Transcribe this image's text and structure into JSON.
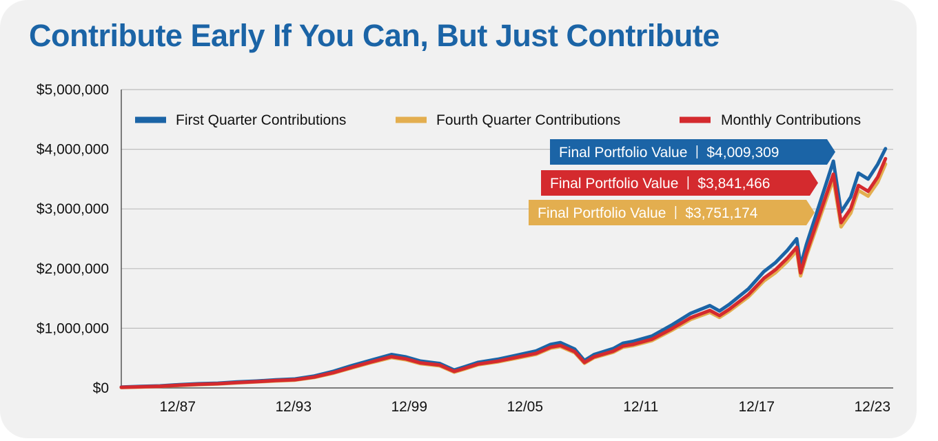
{
  "colors": {
    "first_quarter": "#1b64a6",
    "fourth_quarter": "#e3ae4f",
    "monthly": "#d42a2e",
    "title": "#1b64a6",
    "gridline": "#bdbdbd",
    "background": "#f1f1f1"
  },
  "chart_data": {
    "type": "line",
    "title": "Contribute Early If You Can, But Just Contribute",
    "xlabel": "",
    "ylabel": "",
    "x_range": [
      1985.0,
      2025.0
    ],
    "ylim": [
      0,
      5000000
    ],
    "y_ticks": [
      0,
      1000000,
      2000000,
      3000000,
      4000000,
      5000000
    ],
    "y_tick_labels": [
      "$0",
      "$1,000,000",
      "$2,000,000",
      "$3,000,000",
      "$4,000,000",
      "$5,000,000"
    ],
    "x_ticks": [
      1987.92,
      1993.92,
      1999.92,
      2005.92,
      2011.92,
      2017.92,
      2023.92
    ],
    "x_tick_labels": [
      "12/87",
      "12/93",
      "12/99",
      "12/05",
      "12/11",
      "12/17",
      "12/23"
    ],
    "grid": true,
    "legend_position": "top",
    "x": [
      1985.0,
      1986.0,
      1987.0,
      1988.0,
      1989.0,
      1990.0,
      1991.0,
      1992.0,
      1993.0,
      1994.0,
      1995.0,
      1996.0,
      1997.0,
      1998.0,
      1999.0,
      1999.75,
      2000.5,
      2001.5,
      2002.25,
      2002.75,
      2003.5,
      2004.5,
      2005.5,
      2006.5,
      2007.25,
      2007.75,
      2008.5,
      2009.0,
      2009.5,
      2010.5,
      2011.0,
      2011.5,
      2012.5,
      2013.5,
      2014.5,
      2015.5,
      2016.0,
      2016.5,
      2017.5,
      2018.3,
      2018.9,
      2019.5,
      2020.0,
      2020.2,
      2020.5,
      2021.0,
      2021.5,
      2021.9,
      2022.3,
      2022.8,
      2023.2,
      2023.7,
      2024.2,
      2024.6
    ],
    "series": [
      {
        "name": "First Quarter Contributions",
        "values": [
          15000,
          25000,
          35000,
          55000,
          70000,
          80000,
          100000,
          115000,
          135000,
          150000,
          200000,
          280000,
          380000,
          470000,
          560000,
          520000,
          450000,
          410000,
          300000,
          350000,
          430000,
          480000,
          550000,
          620000,
          730000,
          760000,
          650000,
          460000,
          560000,
          660000,
          750000,
          780000,
          870000,
          1050000,
          1250000,
          1380000,
          1290000,
          1400000,
          1660000,
          1950000,
          2100000,
          2300000,
          2500000,
          2050000,
          2400000,
          2900000,
          3400000,
          3800000,
          2950000,
          3200000,
          3600000,
          3500000,
          3750000,
          4009309
        ]
      },
      {
        "name": "Fourth Quarter Contributions",
        "values": [
          7000,
          15000,
          25000,
          42000,
          57000,
          67000,
          86000,
          100000,
          117000,
          131000,
          176000,
          248000,
          340000,
          428000,
          509000,
          472000,
          407000,
          369000,
          265000,
          312000,
          389000,
          435000,
          499000,
          564000,
          666000,
          693000,
          590000,
          413000,
          507000,
          599000,
          682000,
          708000,
          793000,
          961000,
          1147000,
          1267000,
          1183000,
          1284000,
          1526000,
          1793000,
          1932000,
          2116000,
          2298000,
          1878000,
          2204000,
          2665000,
          3128000,
          3495000,
          2700000,
          2930000,
          3310000,
          3215000,
          3448000,
          3751174
        ]
      },
      {
        "name": "Monthly Contributions",
        "values": [
          10000,
          18000,
          28000,
          46000,
          61000,
          71000,
          90000,
          105000,
          124000,
          137000,
          183000,
          257000,
          351000,
          440000,
          524000,
          487000,
          420000,
          383000,
          277000,
          324000,
          401000,
          448000,
          514000,
          580000,
          684000,
          712000,
          607000,
          427000,
          522000,
          617000,
          702000,
          729000,
          816000,
          987000,
          1177000,
          1299000,
          1214000,
          1318000,
          1565000,
          1838000,
          1981000,
          2170000,
          2357000,
          1928000,
          2260000,
          2732000,
          3206000,
          3583000,
          2770000,
          3005000,
          3394000,
          3296000,
          3535000,
          3841466
        ]
      }
    ],
    "annotations": [
      {
        "label": "Final Portfolio Value",
        "value": "$4,009,309",
        "series": "First Quarter Contributions"
      },
      {
        "label": "Final Portfolio Value",
        "value": "$3,841,466",
        "series": "Monthly Contributions"
      },
      {
        "label": "Final Portfolio Value",
        "value": "$3,751,174",
        "series": "Fourth Quarter Contributions"
      }
    ]
  }
}
